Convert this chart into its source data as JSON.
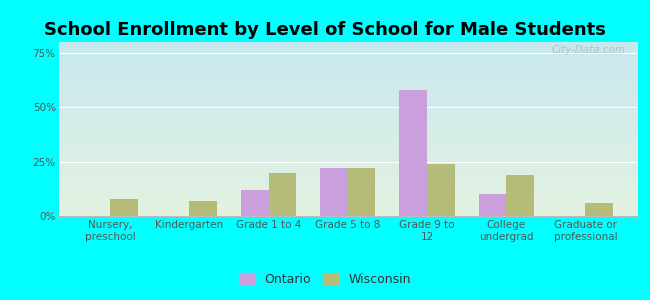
{
  "title": "School Enrollment by Level of School for Male Students",
  "categories": [
    "Nursery,\npreschool",
    "Kindergarten",
    "Grade 1 to 4",
    "Grade 5 to 8",
    "Grade 9 to\n12",
    "College\nundergrad",
    "Graduate or\nprofessional"
  ],
  "ontario": [
    0.0,
    0.0,
    12.0,
    22.0,
    58.0,
    10.0,
    0.0
  ],
  "wisconsin": [
    8.0,
    7.0,
    20.0,
    22.0,
    24.0,
    19.0,
    6.0
  ],
  "ontario_color": "#c9a0dc",
  "wisconsin_color": "#b5bc7a",
  "background_color": "#00ffff",
  "plot_bg_top": "#c8e8f0",
  "plot_bg_bottom": "#e4f2e0",
  "yticks": [
    0,
    25,
    50,
    75
  ],
  "ylim": [
    0,
    80
  ],
  "title_fontsize": 13,
  "tick_fontsize": 7.5,
  "bar_width": 0.35,
  "watermark": "City-Data.com"
}
